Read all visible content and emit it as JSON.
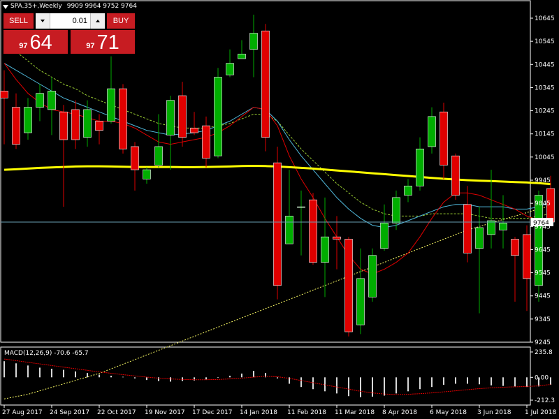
{
  "header": {
    "symbol_label": "SPA.35+,Weekly",
    "ohlc_text": "9909 9964 9752 9764"
  },
  "trade_panel": {
    "sell_label": "SELL",
    "buy_label": "BUY",
    "lot_value": "0.01",
    "sell_price_prefix": "97",
    "sell_price_big": "64",
    "buy_price_prefix": "97",
    "buy_price_big": "71",
    "accent_color": "#c71c22"
  },
  "colors": {
    "bull": "#00ad00",
    "bear": "#e00000",
    "ma_yellow": "#ffff00",
    "current_price_line": "#6a9fb5"
  },
  "chart_data": {
    "type": "candlestick",
    "price_axis_ticks": [
      10645,
      10545,
      10445,
      10345,
      10245,
      10145,
      10045,
      9945,
      9845,
      9745,
      9645,
      9545,
      9445,
      9345,
      9245
    ],
    "price_range": [
      9245,
      10645
    ],
    "current_price": 9764,
    "current_price_label": "9764",
    "date_labels": [
      "27 Aug 2017",
      "24 Sep 2017",
      "22 Oct 2017",
      "19 Nov 2017",
      "17 Dec 2017",
      "14 Jan 2018",
      "11 Feb 2018",
      "11 Mar 2018",
      "8 Apr 2018",
      "6 May 2018",
      "3 Jun 2018",
      "1 Jul 2018"
    ],
    "date_label_bar_index": [
      0,
      4,
      8,
      12,
      16,
      20,
      24,
      28,
      32,
      36,
      40,
      44
    ],
    "candles": [
      {
        "o": 10330,
        "h": 10420,
        "l": 10100,
        "c": 10300
      },
      {
        "o": 10260,
        "h": 10320,
        "l": 10080,
        "c": 10100
      },
      {
        "o": 10150,
        "h": 10300,
        "l": 10120,
        "c": 10260
      },
      {
        "o": 10260,
        "h": 10360,
        "l": 10200,
        "c": 10320
      },
      {
        "o": 10250,
        "h": 10390,
        "l": 10140,
        "c": 10330
      },
      {
        "o": 10240,
        "h": 10270,
        "l": 9830,
        "c": 10120
      },
      {
        "o": 10250,
        "h": 10290,
        "l": 10080,
        "c": 10120
      },
      {
        "o": 10130,
        "h": 10290,
        "l": 10090,
        "c": 10250
      },
      {
        "o": 10200,
        "h": 10230,
        "l": 10100,
        "c": 10160
      },
      {
        "o": 10200,
        "h": 10480,
        "l": 10190,
        "c": 10340
      },
      {
        "o": 10340,
        "h": 10360,
        "l": 10060,
        "c": 10080
      },
      {
        "o": 10090,
        "h": 10110,
        "l": 9900,
        "c": 9990
      },
      {
        "o": 9950,
        "h": 10000,
        "l": 9930,
        "c": 9990
      },
      {
        "o": 10010,
        "h": 10230,
        "l": 10000,
        "c": 10090
      },
      {
        "o": 10140,
        "h": 10310,
        "l": 9990,
        "c": 10290
      },
      {
        "o": 10310,
        "h": 10370,
        "l": 10090,
        "c": 10130
      },
      {
        "o": 10170,
        "h": 10240,
        "l": 10140,
        "c": 10150
      },
      {
        "o": 10180,
        "h": 10220,
        "l": 10000,
        "c": 10040
      },
      {
        "o": 10050,
        "h": 10430,
        "l": 10040,
        "c": 10390
      },
      {
        "o": 10400,
        "h": 10510,
        "l": 10390,
        "c": 10450
      },
      {
        "o": 10470,
        "h": 10550,
        "l": 10470,
        "c": 10490
      },
      {
        "o": 10510,
        "h": 10660,
        "l": 10390,
        "c": 10580
      },
      {
        "o": 10590,
        "h": 10620,
        "l": 10070,
        "c": 10130
      },
      {
        "o": 10020,
        "h": 10090,
        "l": 9430,
        "c": 9490
      },
      {
        "o": 9670,
        "h": 9990,
        "l": 9670,
        "c": 9790
      },
      {
        "o": 9830,
        "h": 9900,
        "l": 9620,
        "c": 9830
      },
      {
        "o": 9860,
        "h": 9890,
        "l": 9580,
        "c": 9590
      },
      {
        "o": 9590,
        "h": 9870,
        "l": 9440,
        "c": 9700
      },
      {
        "o": 9700,
        "h": 9790,
        "l": 9560,
        "c": 9690
      },
      {
        "o": 9690,
        "h": 9700,
        "l": 9270,
        "c": 9290
      },
      {
        "o": 9320,
        "h": 9650,
        "l": 9280,
        "c": 9520
      },
      {
        "o": 9440,
        "h": 9650,
        "l": 9420,
        "c": 9620
      },
      {
        "o": 9650,
        "h": 9840,
        "l": 9640,
        "c": 9760
      },
      {
        "o": 9760,
        "h": 9900,
        "l": 9730,
        "c": 9870
      },
      {
        "o": 9880,
        "h": 9950,
        "l": 9850,
        "c": 9920
      },
      {
        "o": 9920,
        "h": 10130,
        "l": 9900,
        "c": 10080
      },
      {
        "o": 10090,
        "h": 10260,
        "l": 10060,
        "c": 10220
      },
      {
        "o": 10240,
        "h": 10280,
        "l": 9950,
        "c": 10010
      },
      {
        "o": 10050,
        "h": 10060,
        "l": 9860,
        "c": 9880
      },
      {
        "o": 9840,
        "h": 9920,
        "l": 9590,
        "c": 9630
      },
      {
        "o": 9650,
        "h": 9830,
        "l": 9370,
        "c": 9740
      },
      {
        "o": 9710,
        "h": 9990,
        "l": 9650,
        "c": 9770
      },
      {
        "o": 9730,
        "h": 9880,
        "l": 9650,
        "c": 9760
      },
      {
        "o": 9690,
        "h": 9700,
        "l": 9420,
        "c": 9620
      },
      {
        "o": 9710,
        "h": 9750,
        "l": 9380,
        "c": 9520
      },
      {
        "o": 9490,
        "h": 9900,
        "l": 9420,
        "c": 9880
      },
      {
        "o": 9909,
        "h": 9964,
        "l": 9752,
        "c": 9764
      }
    ],
    "ma_long_yellow": [
      9990,
      9992,
      9995,
      9998,
      10000,
      10002,
      10004,
      10005,
      10005,
      10004,
      10003,
      10002,
      10002,
      10002,
      10002,
      10001,
      10001,
      10002,
      10003,
      10004,
      10006,
      10007,
      10006,
      10004,
      10001,
      9998,
      9995,
      9991,
      9987,
      9983,
      9979,
      9975,
      9971,
      9967,
      9963,
      9959,
      9955,
      9951,
      9948,
      9945,
      9943,
      9941,
      9939,
      9937,
      9935,
      9932,
      9928
    ],
    "ma_red": [
      10450,
      10380,
      10320,
      10280,
      10250,
      10240,
      10230,
      10215,
      10200,
      10200,
      10190,
      10170,
      10140,
      10110,
      10100,
      10110,
      10120,
      10130,
      10150,
      10180,
      10220,
      10260,
      10250,
      10180,
      10050,
      9950,
      9870,
      9780,
      9700,
      9620,
      9560,
      9540,
      9560,
      9590,
      9630,
      9700,
      9780,
      9850,
      9890,
      9890,
      9880,
      9860,
      9840,
      9820,
      9790,
      9770,
      9760
    ],
    "ma_cyan": [
      10450,
      10420,
      10390,
      10360,
      10330,
      10300,
      10280,
      10260,
      10240,
      10220,
      10200,
      10180,
      10160,
      10150,
      10140,
      10145,
      10150,
      10160,
      10180,
      10200,
      10230,
      10260,
      10250,
      10200,
      10120,
      10050,
      9990,
      9930,
      9870,
      9820,
      9780,
      9750,
      9740,
      9750,
      9770,
      9790,
      9810,
      9830,
      9840,
      9840,
      9830,
      9830,
      9830,
      9820,
      9820,
      9830,
      9850
    ],
    "ma_green": [
      10550,
      10500,
      10460,
      10420,
      10390,
      10360,
      10340,
      10310,
      10290,
      10270,
      10250,
      10230,
      10210,
      10190,
      10180,
      10170,
      10170,
      10170,
      10180,
      10190,
      10210,
      10230,
      10230,
      10200,
      10140,
      10080,
      10030,
      9980,
      9930,
      9890,
      9850,
      9820,
      9800,
      9790,
      9790,
      9790,
      9800,
      9800,
      9800,
      9800,
      9790,
      9780,
      9780,
      9780,
      9780,
      9790,
      9800
    ],
    "ma_yellow_dotted": [
      9000,
      9010,
      9020,
      9035,
      9050,
      9065,
      9080,
      9095,
      9110,
      9130,
      9150,
      9170,
      9190,
      9210,
      9230,
      9250,
      9270,
      9290,
      9310,
      9330,
      9350,
      9370,
      9390,
      9410,
      9430,
      9450,
      9470,
      9490,
      9510,
      9530,
      9550,
      9570,
      9590,
      9610,
      9630,
      9650,
      9670,
      9690,
      9710,
      9730,
      9745,
      9760,
      9775,
      9790,
      9805,
      9820,
      9835
    ],
    "macd": {
      "label": "MACD(12,26,9) -70.6 -65.7",
      "axis_ticks": [
        "235.8",
        "0.00",
        "-212.3"
      ],
      "range": [
        -212.3,
        235.8
      ],
      "hist": [
        150,
        130,
        110,
        90,
        80,
        70,
        55,
        40,
        25,
        15,
        5,
        -10,
        -25,
        -35,
        -40,
        -35,
        -30,
        -20,
        -5,
        15,
        35,
        60,
        40,
        -10,
        -60,
        -90,
        -110,
        -130,
        -150,
        -175,
        -185,
        -180,
        -170,
        -150,
        -130,
        -110,
        -90,
        -70,
        -60,
        -60,
        -65,
        -75,
        -80,
        -85,
        -90,
        -85,
        -70
      ],
      "signal": [
        170,
        155,
        140,
        125,
        110,
        95,
        80,
        65,
        50,
        38,
        25,
        13,
        2,
        -8,
        -15,
        -20,
        -22,
        -22,
        -20,
        -15,
        -8,
        2,
        10,
        5,
        -10,
        -30,
        -50,
        -70,
        -90,
        -110,
        -130,
        -145,
        -155,
        -160,
        -158,
        -152,
        -145,
        -135,
        -125,
        -115,
        -105,
        -98,
        -92,
        -88,
        -85,
        -80,
        -66
      ]
    }
  }
}
